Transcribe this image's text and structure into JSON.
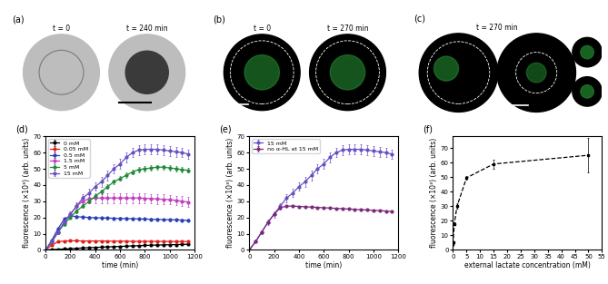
{
  "images": [
    {
      "label": "(a)",
      "captions": [
        "t = 0",
        "t = 240 min"
      ]
    },
    {
      "label": "(b)",
      "captions": [
        "t = 0",
        "t = 270 min"
      ]
    },
    {
      "label": "(c)",
      "captions": [
        "t = 270 min"
      ]
    }
  ],
  "chart_data": [
    {
      "label": "(d)",
      "type": "line",
      "marker": "o",
      "x_label": "time (min)",
      "y_label": "fluorescence (×10³) (arb. units)",
      "xlim": [
        0,
        1200
      ],
      "xticks": [
        0,
        200,
        400,
        600,
        800,
        1000,
        1200
      ],
      "ylim": [
        0,
        70
      ],
      "yticks": [
        0,
        10,
        20,
        30,
        40,
        50,
        60,
        70
      ],
      "legend": "upper left",
      "x": [
        0,
        50,
        100,
        150,
        200,
        250,
        300,
        350,
        400,
        450,
        500,
        550,
        600,
        650,
        700,
        750,
        800,
        850,
        900,
        950,
        1000,
        1050,
        1100,
        1150
      ],
      "series": [
        {
          "name": "0 mM",
          "color": "#000000",
          "values": [
            0,
            0.2,
            0.4,
            0.6,
            0.8,
            1.0,
            1.2,
            1.4,
            1.5,
            1.7,
            1.9,
            2.0,
            2.2,
            2.3,
            2.5,
            2.6,
            2.8,
            2.9,
            3.0,
            3.1,
            3.2,
            3.3,
            3.4,
            3.5
          ],
          "errors": [
            0,
            0.3,
            0.3,
            0.3,
            0.3,
            0.3,
            0.3,
            0.3,
            0.3,
            0.3,
            0.3,
            0.3,
            0.3,
            0.3,
            0.3,
            0.3,
            0.3,
            0.3,
            0.3,
            0.3,
            0.3,
            0.3,
            0.3,
            0.3
          ]
        },
        {
          "name": "0.05 mM",
          "color": "#e0201b",
          "values": [
            0,
            3,
            5,
            5.5,
            5.6,
            5.6,
            5.5,
            5.5,
            5.5,
            5.5,
            5.4,
            5.4,
            5.4,
            5.4,
            5.3,
            5.3,
            5.3,
            5.3,
            5.3,
            5.2,
            5.2,
            5.2,
            5.2,
            5.2
          ],
          "errors": [
            0,
            0.4,
            0.5,
            0.5,
            0.5,
            0.5,
            0.5,
            0.5,
            0.5,
            0.5,
            0.5,
            0.5,
            0.5,
            0.5,
            0.5,
            0.5,
            0.5,
            0.5,
            0.5,
            0.5,
            0.5,
            0.5,
            0.5,
            0.5
          ]
        },
        {
          "name": "0.5 mM",
          "color": "#2a3fb5",
          "values": [
            0,
            6,
            13,
            19,
            21,
            20.5,
            20.2,
            20,
            19.8,
            19.7,
            19.6,
            19.5,
            19.4,
            19.3,
            19.2,
            19.1,
            19,
            18.9,
            18.8,
            18.7,
            18.6,
            18.5,
            18.4,
            18.2
          ],
          "errors": [
            0,
            0.5,
            0.8,
            0.8,
            0.8,
            0.8,
            0.8,
            0.8,
            0.8,
            0.8,
            0.8,
            0.8,
            0.8,
            0.8,
            0.8,
            0.8,
            0.8,
            0.8,
            0.8,
            0.8,
            0.8,
            0.8,
            0.8,
            0.8
          ]
        },
        {
          "name": "1.5 mM",
          "color": "#c040c0",
          "values": [
            0,
            5,
            11,
            17,
            22,
            27,
            30,
            31.5,
            32,
            32,
            32,
            32,
            32,
            32,
            32,
            32,
            31.8,
            31.6,
            31.4,
            31.2,
            31,
            30.5,
            30,
            29.5
          ],
          "errors": [
            0,
            0.5,
            1,
            1.5,
            2,
            2.5,
            3,
            3,
            3,
            3,
            3,
            3,
            3,
            3,
            3,
            3,
            3,
            3,
            3,
            3,
            3,
            3,
            3,
            3
          ]
        },
        {
          "name": "5 mM",
          "color": "#1f8a3a",
          "values": [
            0,
            5,
            11,
            16,
            20,
            24,
            27,
            30,
            33,
            36,
            39,
            42,
            44,
            46,
            48,
            49.5,
            50,
            50.5,
            51,
            51,
            50.5,
            50,
            49.5,
            49
          ],
          "errors": [
            0,
            0.5,
            0.8,
            1,
            1,
            1.2,
            1.2,
            1.3,
            1.3,
            1.4,
            1.4,
            1.5,
            1.5,
            1.5,
            1.5,
            1.5,
            1.5,
            1.5,
            1.5,
            1.5,
            1.5,
            1.5,
            1.5,
            1.5
          ]
        },
        {
          "name": "15 mM",
          "color": "#6a4fc4",
          "values": [
            0,
            5,
            11,
            17,
            22,
            27,
            32,
            35,
            39,
            42,
            46,
            50,
            53,
            57,
            60,
            61.5,
            62,
            62,
            62,
            61.5,
            61,
            60.5,
            60,
            59
          ],
          "errors": [
            0,
            0.5,
            1,
            1.5,
            2,
            2,
            2.5,
            2.5,
            2.5,
            3,
            3,
            3,
            3,
            3,
            3,
            3,
            3,
            3,
            3,
            3,
            3,
            3,
            3,
            3
          ]
        }
      ]
    },
    {
      "label": "(e)",
      "type": "line",
      "marker": "o",
      "x_label": "time (min)",
      "y_label": "fluorescence (×10³) (arb. units)",
      "xlim": [
        0,
        1200
      ],
      "xticks": [
        0,
        200,
        400,
        600,
        800,
        1000,
        1200
      ],
      "ylim": [
        0,
        70
      ],
      "yticks": [
        0,
        10,
        20,
        30,
        40,
        50,
        60,
        70
      ],
      "legend": "upper left",
      "x": [
        0,
        50,
        100,
        150,
        200,
        250,
        300,
        350,
        400,
        450,
        500,
        550,
        600,
        650,
        700,
        750,
        800,
        850,
        900,
        950,
        1000,
        1050,
        1100,
        1150
      ],
      "series": [
        {
          "name": "15 mM",
          "color": "#6a4fc4",
          "values": [
            0,
            5,
            11,
            17,
            22,
            27,
            32,
            35,
            39,
            42,
            46,
            50,
            53,
            57,
            60,
            61.5,
            62,
            62,
            62,
            61.5,
            61,
            60.5,
            60,
            59
          ],
          "errors": [
            0,
            0.5,
            1,
            1.5,
            2,
            2,
            2.5,
            2.5,
            2.5,
            3,
            3,
            3,
            3,
            3,
            3,
            3,
            3,
            3,
            3,
            3,
            3,
            3,
            3,
            3
          ]
        },
        {
          "name": "no α-HL at 15 mM",
          "color": "#7a2a7a",
          "values": [
            0,
            5,
            11,
            17,
            22,
            26,
            27,
            27,
            26.8,
            26.6,
            26.4,
            26.2,
            26,
            25.8,
            25.6,
            25.4,
            25.2,
            25,
            24.8,
            24.6,
            24.4,
            24.2,
            24,
            23.6
          ],
          "errors": [
            0,
            0.3,
            0.4,
            0.5,
            0.5,
            0.5,
            0.5,
            0.5,
            0.5,
            0.5,
            0.5,
            0.5,
            0.5,
            0.5,
            0.5,
            0.5,
            0.5,
            0.5,
            0.5,
            0.5,
            0.5,
            0.5,
            0.5,
            0.5
          ]
        }
      ]
    },
    {
      "label": "(f)",
      "type": "line",
      "marker": "s",
      "line_style": "dashed",
      "x_label": "external lactate concentration (mM)",
      "y_label": "fluorescence (×10³) (arb. units)",
      "xlim": [
        0,
        55
      ],
      "xticks": [
        0,
        5,
        10,
        15,
        20,
        25,
        30,
        35,
        40,
        45,
        50,
        55
      ],
      "ylim": [
        0,
        78
      ],
      "yticks": [
        0,
        10,
        20,
        30,
        40,
        50,
        60,
        70
      ],
      "x": [
        0,
        0.05,
        0.5,
        1.5,
        5,
        15,
        50
      ],
      "series": [
        {
          "color": "#000000",
          "values": [
            4,
            5.5,
            18,
            30,
            49.5,
            59,
            65
          ],
          "errors": [
            1,
            0.5,
            1,
            2,
            1,
            3,
            12
          ]
        }
      ]
    }
  ]
}
